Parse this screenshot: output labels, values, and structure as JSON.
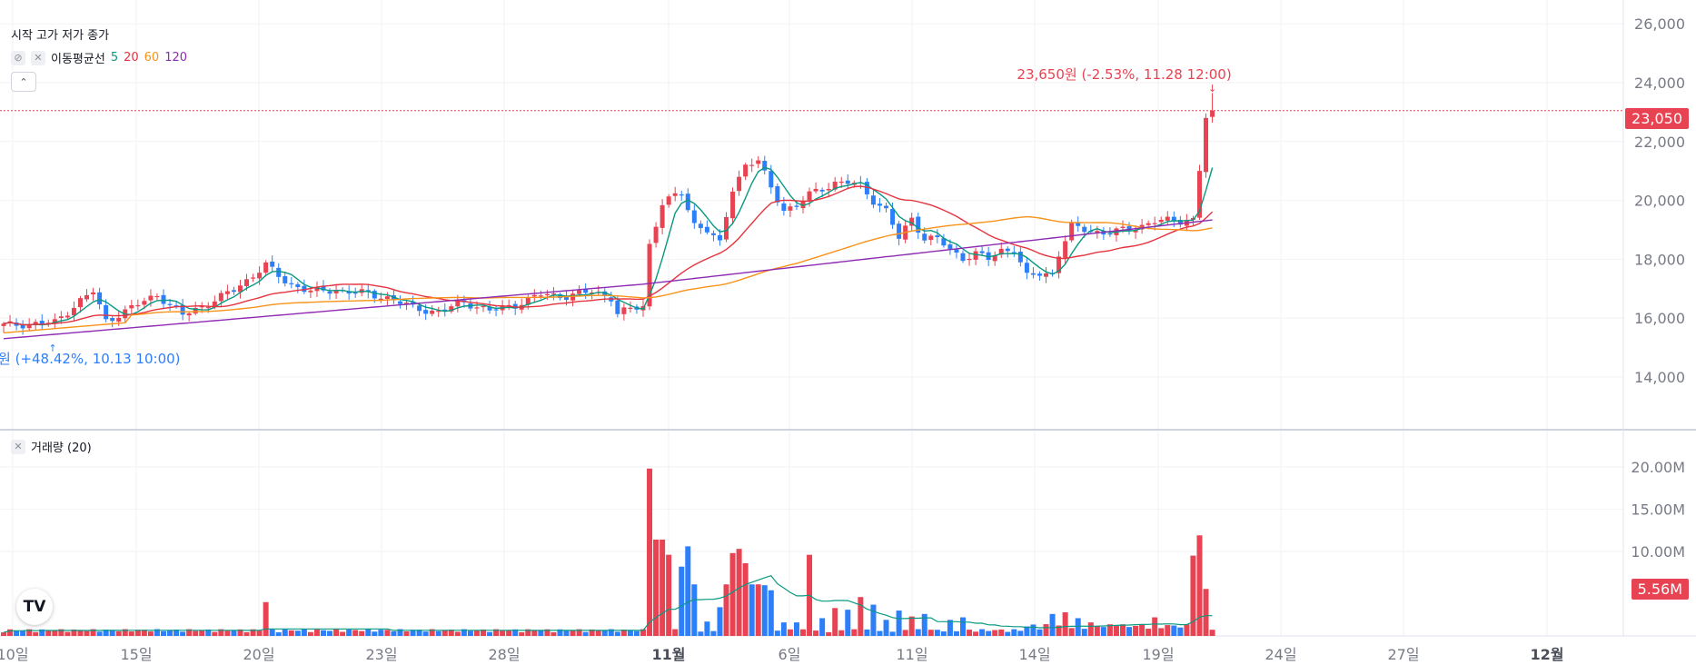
{
  "legend": {
    "ohlc_label": "시작 고가 저가 종가",
    "ma_title": "이동평균선",
    "ma_periods": [
      "5",
      "20",
      "60",
      "120"
    ],
    "volume_title": "거래량 (20)",
    "collapse_icon": "chevron-up-icon",
    "hide_icon": "eye-off-icon",
    "close_icon": "close-icon"
  },
  "annotations": {
    "high": "23,650원 (-2.53%, 11.28 12:00)",
    "low": "원 (+48.42%, 10.13 10:00)"
  },
  "last_price_label": "23,050",
  "last_volume_label": "5.56M",
  "colors": {
    "up": "#e84352",
    "down": "#2d7ff9",
    "ma5": "#089981",
    "ma20": "#e5333f",
    "ma60": "#f7931a",
    "ma120": "#8e2bb3",
    "vol_ma": "#089981",
    "axis_text": "#787b86",
    "grid": "#f0f2f5"
  },
  "chart_data": [
    {
      "type": "candlestick",
      "title": "",
      "x_ticks": [
        "10일",
        "15일",
        "20일",
        "23일",
        "28일",
        "11월",
        "6일",
        "11일",
        "14일",
        "19일",
        "24일",
        "27일",
        "12월"
      ],
      "y_ticks": [
        "26,000",
        "24,000",
        "22,000",
        "20,000",
        "18,000",
        "16,000",
        "14,000"
      ],
      "ylim": [
        12300,
        26500
      ],
      "grid": true,
      "last_price": 23050,
      "high_point": {
        "value": 23650,
        "label_date": "11.28 12:00"
      },
      "low_point": {
        "label_date": "10.13 10:00"
      },
      "series_close_anchors": [
        [
          0,
          15750
        ],
        [
          8,
          15850
        ],
        [
          12,
          16600
        ],
        [
          14,
          16900
        ],
        [
          16,
          15900
        ],
        [
          20,
          16350
        ],
        [
          24,
          16800
        ],
        [
          28,
          16100
        ],
        [
          30,
          16300
        ],
        [
          32,
          16500
        ],
        [
          36,
          16950
        ],
        [
          41,
          17800
        ],
        [
          44,
          17250
        ],
        [
          48,
          16900
        ],
        [
          52,
          16950
        ],
        [
          56,
          16850
        ],
        [
          60,
          16700
        ],
        [
          64,
          16350
        ],
        [
          68,
          16200
        ],
        [
          72,
          16550
        ],
        [
          76,
          16250
        ],
        [
          80,
          16450
        ],
        [
          84,
          16800
        ],
        [
          88,
          16750
        ],
        [
          92,
          16900
        ],
        [
          95,
          16700
        ],
        [
          96,
          16150
        ],
        [
          98,
          16300
        ],
        [
          100,
          16400
        ],
        [
          101,
          18500
        ],
        [
          103,
          19900
        ],
        [
          106,
          20250
        ],
        [
          108,
          19200
        ],
        [
          110,
          19000
        ],
        [
          112,
          18500
        ],
        [
          114,
          20400
        ],
        [
          116,
          21200
        ],
        [
          118,
          21350
        ],
        [
          120,
          20400
        ],
        [
          122,
          19700
        ],
        [
          124,
          19800
        ],
        [
          126,
          20200
        ],
        [
          128,
          20400
        ],
        [
          130,
          20600
        ],
        [
          132,
          20600
        ],
        [
          134,
          20500
        ],
        [
          136,
          20000
        ],
        [
          138,
          19650
        ],
        [
          140,
          18700
        ],
        [
          142,
          19400
        ],
        [
          144,
          18700
        ],
        [
          146,
          18700
        ],
        [
          148,
          18300
        ],
        [
          150,
          18050
        ],
        [
          152,
          18200
        ],
        [
          154,
          18000
        ],
        [
          156,
          18300
        ],
        [
          158,
          18350
        ],
        [
          160,
          17400
        ],
        [
          162,
          17500
        ],
        [
          164,
          17500
        ],
        [
          165,
          18200
        ],
        [
          167,
          19100
        ],
        [
          169,
          19000
        ],
        [
          172,
          18900
        ],
        [
          176,
          19000
        ],
        [
          180,
          19300
        ],
        [
          184,
          19300
        ],
        [
          186,
          19400
        ],
        [
          187,
          21000
        ],
        [
          188,
          22800
        ],
        [
          189,
          23050
        ]
      ],
      "moving_averages": [
        "MA5",
        "MA20",
        "MA60",
        "MA120"
      ]
    },
    {
      "type": "bar",
      "title": "",
      "y_ticks": [
        "20.00M",
        "15.00M",
        "10.00M"
      ],
      "ylim": [
        0,
        23000000
      ],
      "last_volume": 5560000,
      "volume_spikes": [
        [
          41,
          4000000
        ],
        [
          101,
          19800000
        ],
        [
          102,
          11400000
        ],
        [
          103,
          11400000
        ],
        [
          104,
          9600000
        ],
        [
          106,
          8200000
        ],
        [
          107,
          10600000
        ],
        [
          108,
          6100000
        ],
        [
          110,
          1700000
        ],
        [
          112,
          3400000
        ],
        [
          113,
          6100000
        ],
        [
          114,
          9800000
        ],
        [
          115,
          10300000
        ],
        [
          116,
          8600000
        ],
        [
          117,
          6100000
        ],
        [
          118,
          6100000
        ],
        [
          119,
          6000000
        ],
        [
          120,
          5400000
        ],
        [
          122,
          1600000
        ],
        [
          124,
          1600000
        ],
        [
          126,
          9600000
        ],
        [
          128,
          2100000
        ],
        [
          130,
          3300000
        ],
        [
          132,
          3100000
        ],
        [
          134,
          4600000
        ],
        [
          136,
          3700000
        ],
        [
          138,
          1900000
        ],
        [
          140,
          3000000
        ],
        [
          142,
          2300000
        ],
        [
          144,
          2600000
        ],
        [
          148,
          1900000
        ],
        [
          150,
          2200000
        ],
        [
          164,
          2600000
        ],
        [
          166,
          2800000
        ],
        [
          168,
          2100000
        ],
        [
          170,
          1600000
        ],
        [
          174,
          1200000
        ],
        [
          180,
          2200000
        ],
        [
          186,
          9500000
        ],
        [
          187,
          11900000
        ],
        [
          188,
          5560000
        ]
      ],
      "moving_averages": [
        "MA20"
      ]
    }
  ]
}
